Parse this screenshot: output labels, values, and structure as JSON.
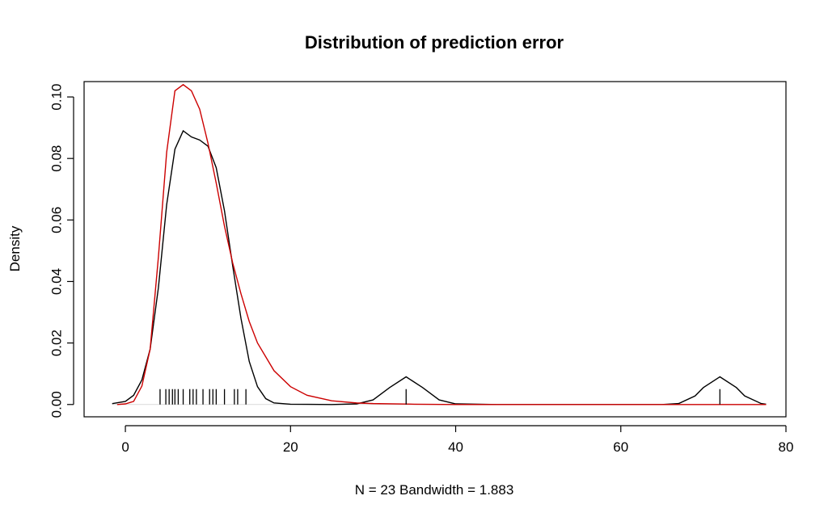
{
  "chart_data": {
    "type": "line",
    "title": "Distribution of prediction error",
    "xlabel": "N = 23   Bandwidth = 1.883",
    "ylabel": "Density",
    "xlim": [
      -5,
      80
    ],
    "ylim": [
      -0.004,
      0.105
    ],
    "x_ticks": [
      0,
      20,
      40,
      60,
      80
    ],
    "y_ticks": [
      0.0,
      0.02,
      0.04,
      0.06,
      0.08,
      0.1
    ],
    "x_tick_labels": [
      "0",
      "20",
      "40",
      "60",
      "80"
    ],
    "y_tick_labels": [
      "0.00",
      "0.02",
      "0.04",
      "0.06",
      "0.08",
      "0.10"
    ],
    "grid": false,
    "legend": "none",
    "series": [
      {
        "color": "#000000",
        "x": [
          -1.6,
          0,
          1,
          2,
          3,
          4,
          5,
          6,
          7,
          8,
          9,
          10,
          11,
          12,
          13,
          14,
          15,
          16,
          17,
          18,
          20,
          25,
          28,
          30,
          32,
          34,
          36,
          38,
          40,
          45,
          55,
          65,
          67,
          69,
          70,
          72,
          74,
          75,
          77,
          77.6
        ],
        "y": [
          0.0003,
          0.001,
          0.003,
          0.008,
          0.018,
          0.038,
          0.065,
          0.083,
          0.089,
          0.087,
          0.086,
          0.084,
          0.077,
          0.063,
          0.045,
          0.028,
          0.014,
          0.0058,
          0.0019,
          0.0005,
          0.0001,
          0.0,
          0.0002,
          0.0015,
          0.0055,
          0.009,
          0.0055,
          0.0015,
          0.0002,
          0.0,
          0.0,
          0.0,
          0.0003,
          0.0028,
          0.0055,
          0.009,
          0.0055,
          0.0028,
          0.0003,
          0.0001
        ]
      },
      {
        "color": "#cc0000",
        "x": [
          -1,
          0,
          1,
          2,
          3,
          4,
          5,
          6,
          7,
          8,
          9,
          10,
          11,
          12,
          13,
          14,
          15,
          16,
          18,
          20,
          22,
          25,
          28,
          30,
          35,
          40,
          50,
          60,
          70,
          77.6
        ],
        "y": [
          0.0,
          0.0002,
          0.001,
          0.006,
          0.018,
          0.048,
          0.082,
          0.102,
          0.104,
          0.102,
          0.096,
          0.085,
          0.072,
          0.058,
          0.046,
          0.036,
          0.027,
          0.02,
          0.011,
          0.0058,
          0.003,
          0.0012,
          0.0005,
          0.0003,
          0.0001,
          0.0,
          0.0,
          0.0,
          0.0,
          0.0
        ]
      }
    ],
    "rug": [
      4.2,
      4.9,
      5.3,
      5.7,
      6.0,
      6.4,
      7.0,
      7.8,
      8.2,
      8.6,
      9.4,
      10.2,
      10.6,
      11.0,
      12.0,
      13.2,
      13.6,
      14.6,
      34.0,
      72.0
    ]
  }
}
